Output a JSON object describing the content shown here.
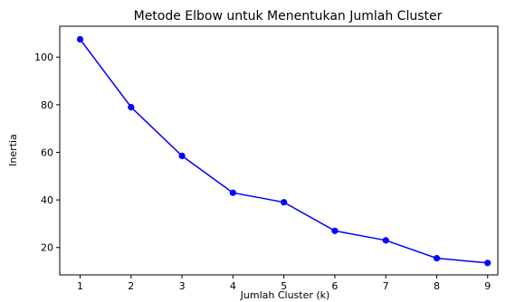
{
  "chart_data": {
    "type": "line",
    "title": "Metode Elbow untuk Menentukan Jumlah Cluster",
    "xlabel": "Jumlah Cluster (k)",
    "ylabel": "Inertia",
    "x": [
      1,
      2,
      3,
      4,
      5,
      6,
      7,
      8,
      9
    ],
    "series": [
      {
        "values": [
          107.5,
          79,
          58.5,
          43,
          39,
          27,
          23,
          15.5,
          13.5
        ],
        "color": "#0000ff",
        "marker": "circle"
      }
    ],
    "xticks": [
      "1",
      "2",
      "3",
      "4",
      "5",
      "6",
      "7",
      "8",
      "9"
    ],
    "yticks": [
      "20",
      "40",
      "60",
      "80",
      "100"
    ],
    "xlim": [
      0.6,
      9.2
    ],
    "ylim": [
      8.5,
      113
    ],
    "grid": false
  }
}
